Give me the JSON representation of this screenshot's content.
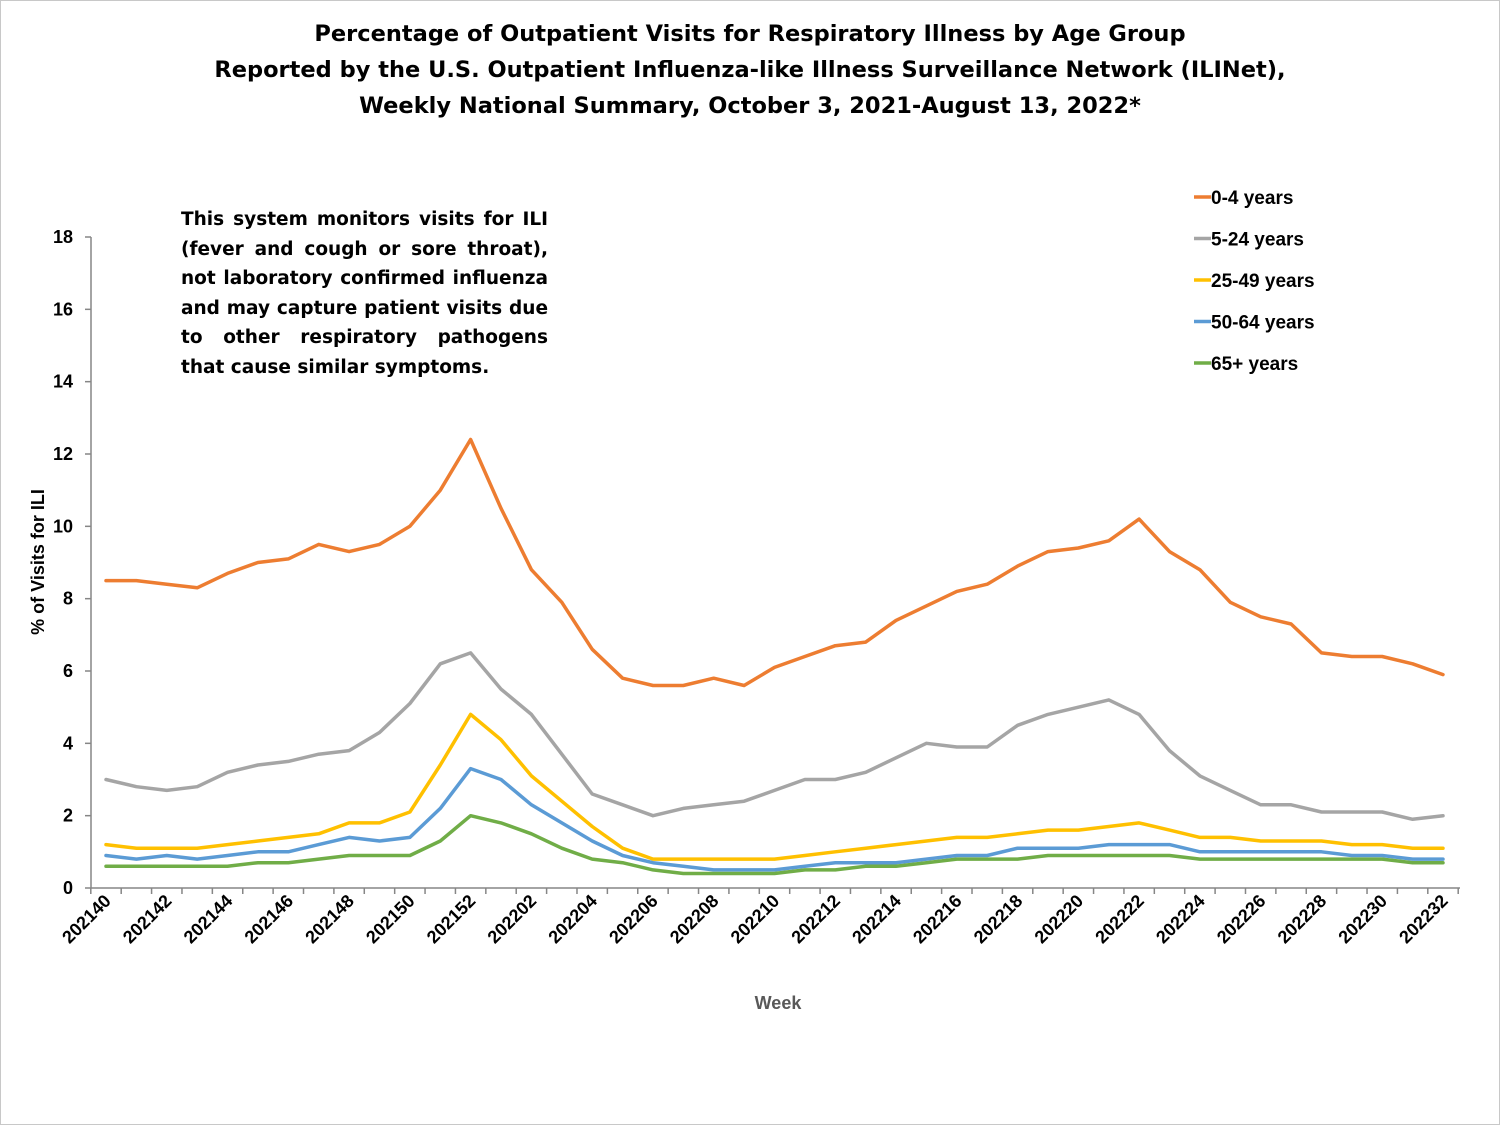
{
  "title_lines": [
    "Percentage of Outpatient Visits for Respiratory Illness by Age Group",
    "Reported by the U.S. Outpatient Influenza-like Illness Surveillance Network (ILINet),",
    "Weekly National Summary, October 3, 2021-August 13, 2022*"
  ],
  "note": "This system monitors visits for ILI (fever and cough or sore throat), not laboratory confirmed influenza and may capture patient visits due to other respiratory pathogens that cause similar symptoms.",
  "chart_data": {
    "type": "line",
    "title": "Percentage of Outpatient Visits for Respiratory Illness by Age Group Reported by the U.S. Outpatient Influenza-like Illness Surveillance Network (ILINet), Weekly National Summary, October 3, 2021-August 13, 2022*",
    "xlabel": "Week",
    "ylabel": "% of Visits for ILI",
    "ylim": [
      0,
      18
    ],
    "yticks": [
      0,
      2,
      4,
      6,
      8,
      10,
      12,
      14,
      16,
      18
    ],
    "grid": false,
    "legend_position": "top-right",
    "x": [
      "202140",
      "202141",
      "202142",
      "202143",
      "202144",
      "202145",
      "202146",
      "202147",
      "202148",
      "202149",
      "202150",
      "202151",
      "202152",
      "202201",
      "202202",
      "202203",
      "202204",
      "202205",
      "202206",
      "202207",
      "202208",
      "202209",
      "202210",
      "202211",
      "202212",
      "202213",
      "202214",
      "202215",
      "202216",
      "202217",
      "202218",
      "202219",
      "202220",
      "202221",
      "202222",
      "202223",
      "202224",
      "202225",
      "202226",
      "202227",
      "202228",
      "202229",
      "202230",
      "202231",
      "202232"
    ],
    "xtick_labels": [
      "202140",
      "202142",
      "202144",
      "202146",
      "202148",
      "202150",
      "202152",
      "202202",
      "202204",
      "202206",
      "202208",
      "202210",
      "202212",
      "202214",
      "202216",
      "202218",
      "202220",
      "202222",
      "202224",
      "202226",
      "202228",
      "202230",
      "202232"
    ],
    "series": [
      {
        "name": "0-4 years",
        "color": "#ED7D31",
        "values": [
          8.5,
          8.5,
          8.4,
          8.3,
          8.7,
          9.0,
          9.1,
          9.5,
          9.3,
          9.5,
          10.0,
          11.0,
          12.4,
          10.5,
          8.8,
          7.9,
          6.6,
          5.8,
          5.6,
          5.6,
          5.8,
          5.6,
          6.1,
          6.4,
          6.7,
          6.8,
          7.4,
          7.8,
          8.2,
          8.4,
          8.9,
          9.3,
          9.4,
          9.6,
          10.2,
          9.3,
          8.8,
          7.9,
          7.5,
          7.3,
          6.5,
          6.4,
          6.4,
          6.2,
          5.9
        ]
      },
      {
        "name": "5-24 years",
        "color": "#A5A5A5",
        "values": [
          3.0,
          2.8,
          2.7,
          2.8,
          3.2,
          3.4,
          3.5,
          3.7,
          3.8,
          4.3,
          5.1,
          6.2,
          6.5,
          5.5,
          4.8,
          3.7,
          2.6,
          2.3,
          2.0,
          2.2,
          2.3,
          2.4,
          2.7,
          3.0,
          3.0,
          3.2,
          3.6,
          4.0,
          3.9,
          3.9,
          4.5,
          4.8,
          5.0,
          5.2,
          4.8,
          3.8,
          3.1,
          2.7,
          2.3,
          2.3,
          2.1,
          2.1,
          2.1,
          1.9,
          2.0
        ]
      },
      {
        "name": "25-49 years",
        "color": "#FFC000",
        "values": [
          1.2,
          1.1,
          1.1,
          1.1,
          1.2,
          1.3,
          1.4,
          1.5,
          1.8,
          1.8,
          2.1,
          3.4,
          4.8,
          4.1,
          3.1,
          2.4,
          1.7,
          1.1,
          0.8,
          0.8,
          0.8,
          0.8,
          0.8,
          0.9,
          1.0,
          1.1,
          1.2,
          1.3,
          1.4,
          1.4,
          1.5,
          1.6,
          1.6,
          1.7,
          1.8,
          1.6,
          1.4,
          1.4,
          1.3,
          1.3,
          1.3,
          1.2,
          1.2,
          1.1,
          1.1
        ]
      },
      {
        "name": "50-64 years",
        "color": "#5B9BD5",
        "values": [
          0.9,
          0.8,
          0.9,
          0.8,
          0.9,
          1.0,
          1.0,
          1.2,
          1.4,
          1.3,
          1.4,
          2.2,
          3.3,
          3.0,
          2.3,
          1.8,
          1.3,
          0.9,
          0.7,
          0.6,
          0.5,
          0.5,
          0.5,
          0.6,
          0.7,
          0.7,
          0.7,
          0.8,
          0.9,
          0.9,
          1.1,
          1.1,
          1.1,
          1.2,
          1.2,
          1.2,
          1.0,
          1.0,
          1.0,
          1.0,
          1.0,
          0.9,
          0.9,
          0.8,
          0.8
        ]
      },
      {
        "name": "65+ years",
        "color": "#70AD47",
        "values": [
          0.6,
          0.6,
          0.6,
          0.6,
          0.6,
          0.7,
          0.7,
          0.8,
          0.9,
          0.9,
          0.9,
          1.3,
          2.0,
          1.8,
          1.5,
          1.1,
          0.8,
          0.7,
          0.5,
          0.4,
          0.4,
          0.4,
          0.4,
          0.5,
          0.5,
          0.6,
          0.6,
          0.7,
          0.8,
          0.8,
          0.8,
          0.9,
          0.9,
          0.9,
          0.9,
          0.9,
          0.8,
          0.8,
          0.8,
          0.8,
          0.8,
          0.8,
          0.8,
          0.7,
          0.7
        ]
      }
    ]
  }
}
